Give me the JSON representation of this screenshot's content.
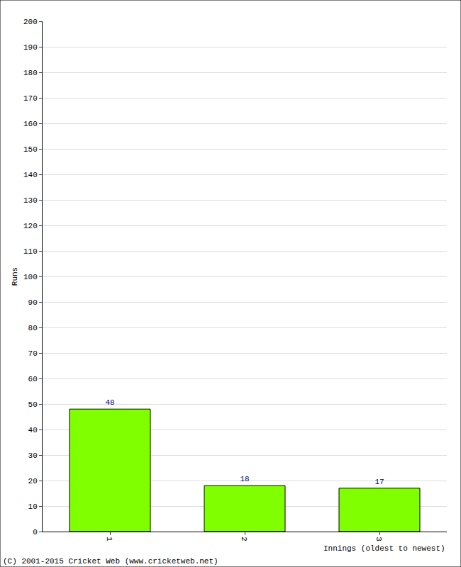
{
  "chart_data": {
    "type": "bar",
    "x_label": "Innings (oldest to newest)",
    "y_label": "Runs",
    "annotations": [
      "(C) 2001-2015 Cricket Web (www.cricketweb.net)"
    ],
    "categories": [
      "1",
      "2",
      "3"
    ],
    "values": [
      48,
      18,
      17
    ],
    "color": "#80ff00",
    "data_labels": true,
    "ylim": [
      0,
      200
    ],
    "yticks": [
      0,
      10,
      20,
      30,
      40,
      50,
      60,
      70,
      80,
      90,
      100,
      110,
      120,
      130,
      140,
      150,
      160,
      170,
      180,
      190,
      200
    ],
    "grid": true
  }
}
